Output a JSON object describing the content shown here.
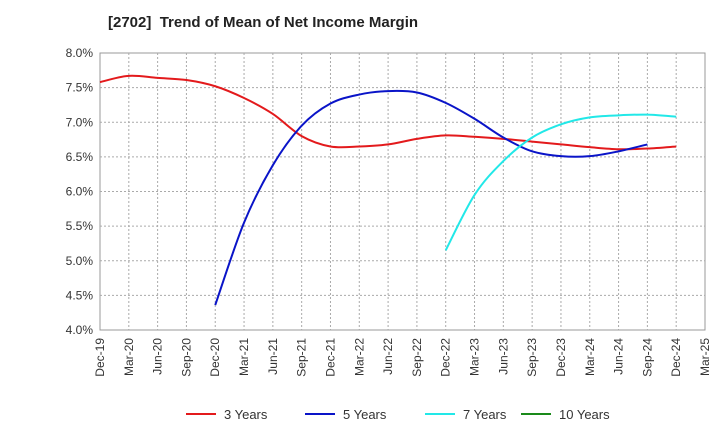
{
  "chart_data": {
    "type": "line",
    "title": "[2702]  Trend of Mean of Net Income Margin",
    "xlabel": "",
    "ylabel": "",
    "x_ticks": [
      "Dec-19",
      "Mar-20",
      "Jun-20",
      "Sep-20",
      "Dec-20",
      "Mar-21",
      "Jun-21",
      "Sep-21",
      "Dec-21",
      "Mar-22",
      "Jun-22",
      "Sep-22",
      "Dec-22",
      "Mar-23",
      "Jun-23",
      "Sep-23",
      "Dec-23",
      "Mar-24",
      "Jun-24",
      "Sep-24",
      "Dec-24",
      "Mar-25"
    ],
    "y_ticks": [
      "4.0%",
      "4.5%",
      "5.0%",
      "5.5%",
      "6.0%",
      "6.5%",
      "7.0%",
      "7.5%",
      "8.0%"
    ],
    "ylim": [
      4.0,
      8.0
    ],
    "grid": true,
    "legend_position": "bottom",
    "series": [
      {
        "name": "3 Years",
        "color": "#e31a1c",
        "start_index": 0,
        "values": [
          7.58,
          7.67,
          7.64,
          7.61,
          7.52,
          7.35,
          7.12,
          6.8,
          6.65,
          6.65,
          6.68,
          6.76,
          6.81,
          6.79,
          6.76,
          6.72,
          6.68,
          6.64,
          6.61,
          6.62,
          6.65
        ]
      },
      {
        "name": "5 Years",
        "color": "#0a14c8",
        "start_index": 4,
        "values": [
          4.36,
          5.55,
          6.38,
          6.95,
          7.27,
          7.4,
          7.45,
          7.43,
          7.28,
          7.05,
          6.78,
          6.58,
          6.51,
          6.51,
          6.58,
          6.68
        ]
      },
      {
        "name": "7 Years",
        "color": "#22e8e8",
        "start_index": 12,
        "values": [
          5.15,
          5.95,
          6.44,
          6.78,
          6.97,
          7.07,
          7.1,
          7.11,
          7.08
        ]
      },
      {
        "name": "10 Years",
        "color": "#1a8a1a",
        "start_index": 0,
        "values": []
      }
    ]
  }
}
